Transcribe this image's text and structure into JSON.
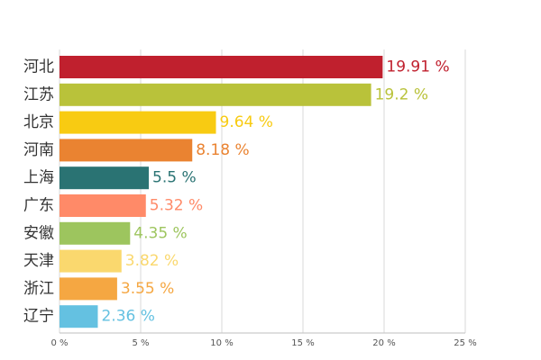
{
  "chart_data": {
    "type": "bar",
    "orientation": "horizontal",
    "categories": [
      "河北",
      "江苏",
      "北京",
      "河南",
      "上海",
      "广东",
      "安徽",
      "天津",
      "浙江",
      "辽宁"
    ],
    "values": [
      19.91,
      19.2,
      9.64,
      8.18,
      5.5,
      5.32,
      4.35,
      3.82,
      3.55,
      2.36
    ],
    "value_labels": [
      "19.91 %",
      "19.2 %",
      "9.64 %",
      "8.18 %",
      "5.5 %",
      "5.32 %",
      "4.35 %",
      "3.82 %",
      "3.55 %",
      "2.36 %"
    ],
    "colors": [
      "#c0202e",
      "#b9c23a",
      "#f8cb12",
      "#ea8331",
      "#2a7373",
      "#ff8a68",
      "#9dc55e",
      "#fad86e",
      "#f5a742",
      "#64c1e1"
    ],
    "xlim": [
      0,
      25
    ],
    "x_ticks": [
      0,
      5,
      10,
      15,
      20,
      25
    ],
    "x_tick_labels": [
      "0 %",
      "5 %",
      "10 %",
      "15 %",
      "20 %",
      "25 %"
    ],
    "grid": true,
    "title": "",
    "xlabel": "",
    "ylabel": ""
  }
}
